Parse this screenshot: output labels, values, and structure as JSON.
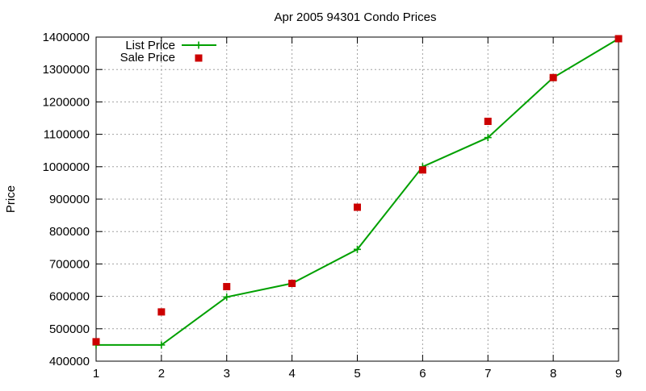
{
  "chart_data": {
    "type": "line",
    "title": "Apr 2005 94301 Condo Prices",
    "xlabel": "",
    "ylabel": "Price",
    "xlim": [
      1,
      9
    ],
    "ylim": [
      400000,
      1400000
    ],
    "x_ticks": [
      "1",
      "2",
      "3",
      "4",
      "5",
      "6",
      "7",
      "8",
      "9"
    ],
    "y_ticks": [
      "400000",
      "500000",
      "600000",
      "700000",
      "800000",
      "900000",
      "1000000",
      "1100000",
      "1200000",
      "1300000",
      "1400000"
    ],
    "grid": true,
    "legend_position": "top-left",
    "series": [
      {
        "name": "List Price",
        "style": "line with plus markers",
        "color": "#00a000",
        "x": [
          1,
          2,
          3,
          4,
          5,
          6,
          7,
          8,
          9
        ],
        "values": [
          450000,
          450000,
          598000,
          640000,
          745000,
          1000000,
          1090000,
          1275000,
          1395000
        ]
      },
      {
        "name": "Sale Price",
        "style": "square markers",
        "color": "#cc0000",
        "x": [
          1,
          2,
          3,
          4,
          5,
          6,
          7,
          8,
          9
        ],
        "values": [
          460000,
          552000,
          630000,
          640000,
          875000,
          990000,
          1140000,
          1275000,
          1395000
        ]
      }
    ]
  }
}
